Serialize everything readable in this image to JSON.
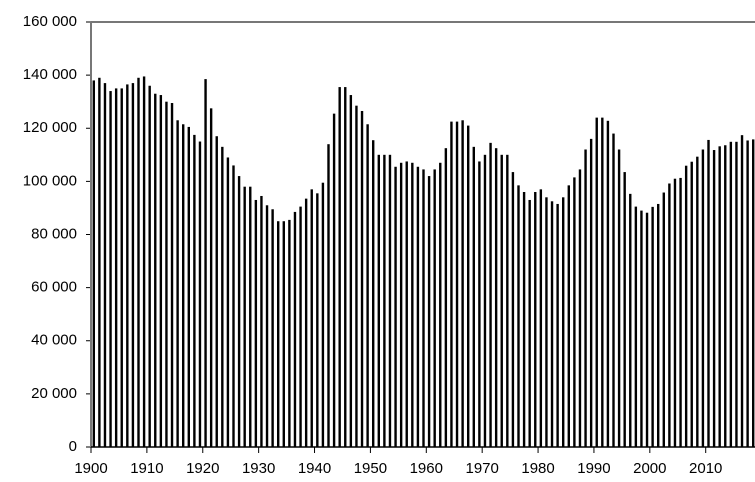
{
  "chart_data": {
    "type": "bar",
    "color": "#000000",
    "x": [
      1900,
      1901,
      1902,
      1903,
      1904,
      1905,
      1906,
      1907,
      1908,
      1909,
      1910,
      1911,
      1912,
      1913,
      1914,
      1915,
      1916,
      1917,
      1918,
      1919,
      1920,
      1921,
      1922,
      1923,
      1924,
      1925,
      1926,
      1927,
      1928,
      1929,
      1930,
      1931,
      1932,
      1933,
      1934,
      1935,
      1936,
      1937,
      1938,
      1939,
      1940,
      1941,
      1942,
      1943,
      1944,
      1945,
      1946,
      1947,
      1948,
      1949,
      1950,
      1951,
      1952,
      1953,
      1954,
      1955,
      1956,
      1957,
      1958,
      1959,
      1960,
      1961,
      1962,
      1963,
      1964,
      1965,
      1966,
      1967,
      1968,
      1969,
      1970,
      1971,
      1972,
      1973,
      1974,
      1975,
      1976,
      1977,
      1978,
      1979,
      1980,
      1981,
      1982,
      1983,
      1984,
      1985,
      1986,
      1987,
      1988,
      1989,
      1990,
      1991,
      1992,
      1993,
      1994,
      1995,
      1996,
      1997,
      1998,
      1999,
      2000,
      2001,
      2002,
      2003,
      2004,
      2005,
      2006,
      2007,
      2008,
      2009,
      2010,
      2011,
      2012,
      2013,
      2014,
      2015,
      2016,
      2017,
      2018
    ],
    "values": [
      138000,
      139000,
      137000,
      134000,
      135000,
      135000,
      136500,
      137000,
      139000,
      139500,
      136000,
      133000,
      132500,
      130000,
      129500,
      123000,
      121500,
      120500,
      117500,
      115000,
      138500,
      127500,
      117000,
      113000,
      109000,
      106000,
      102000,
      98000,
      98000,
      93000,
      94500,
      91000,
      89500,
      85000,
      85000,
      85500,
      88500,
      90500,
      93500,
      97000,
      95500,
      99500,
      114000,
      125500,
      135500,
      135500,
      132500,
      128500,
      126500,
      121500,
      115500,
      110000,
      110000,
      110000,
      105500,
      107000,
      107500,
      107000,
      105500,
      104500,
      102000,
      104500,
      107000,
      112500,
      122500,
      122500,
      123000,
      121000,
      113000,
      107500,
      110000,
      114500,
      112500,
      110000,
      110000,
      103500,
      98500,
      96000,
      93000,
      96000,
      97000,
      94000,
      92500,
      91500,
      94000,
      98500,
      101500,
      104500,
      112000,
      116000,
      124000,
      124000,
      122800,
      118000,
      112000,
      103500,
      95300,
      90500,
      89000,
      88200,
      90400,
      91500,
      95800,
      99200,
      101000,
      101300,
      105900,
      107400,
      109300,
      112000,
      115600,
      111800,
      113200,
      113600,
      114900,
      114900,
      117400,
      115400,
      115800
    ],
    "xlim": [
      1900,
      2019
    ],
    "xticks": [
      1900,
      1910,
      1920,
      1930,
      1940,
      1950,
      1960,
      1970,
      1980,
      1990,
      2000,
      2010
    ],
    "ylim": [
      0,
      160000
    ],
    "yticks": [
      0,
      {
        "value": 20000,
        "label": "20 000"
      },
      {
        "value": 40000,
        "label": "40 000"
      },
      {
        "value": 60000,
        "label": "60 000"
      },
      {
        "value": 80000,
        "label": "80 000"
      },
      {
        "value": 100000,
        "label": "100 000"
      },
      {
        "value": 120000,
        "label": "120 000"
      },
      {
        "value": 140000,
        "label": "140 000"
      },
      {
        "value": 160000,
        "label": "160 000"
      }
    ]
  }
}
